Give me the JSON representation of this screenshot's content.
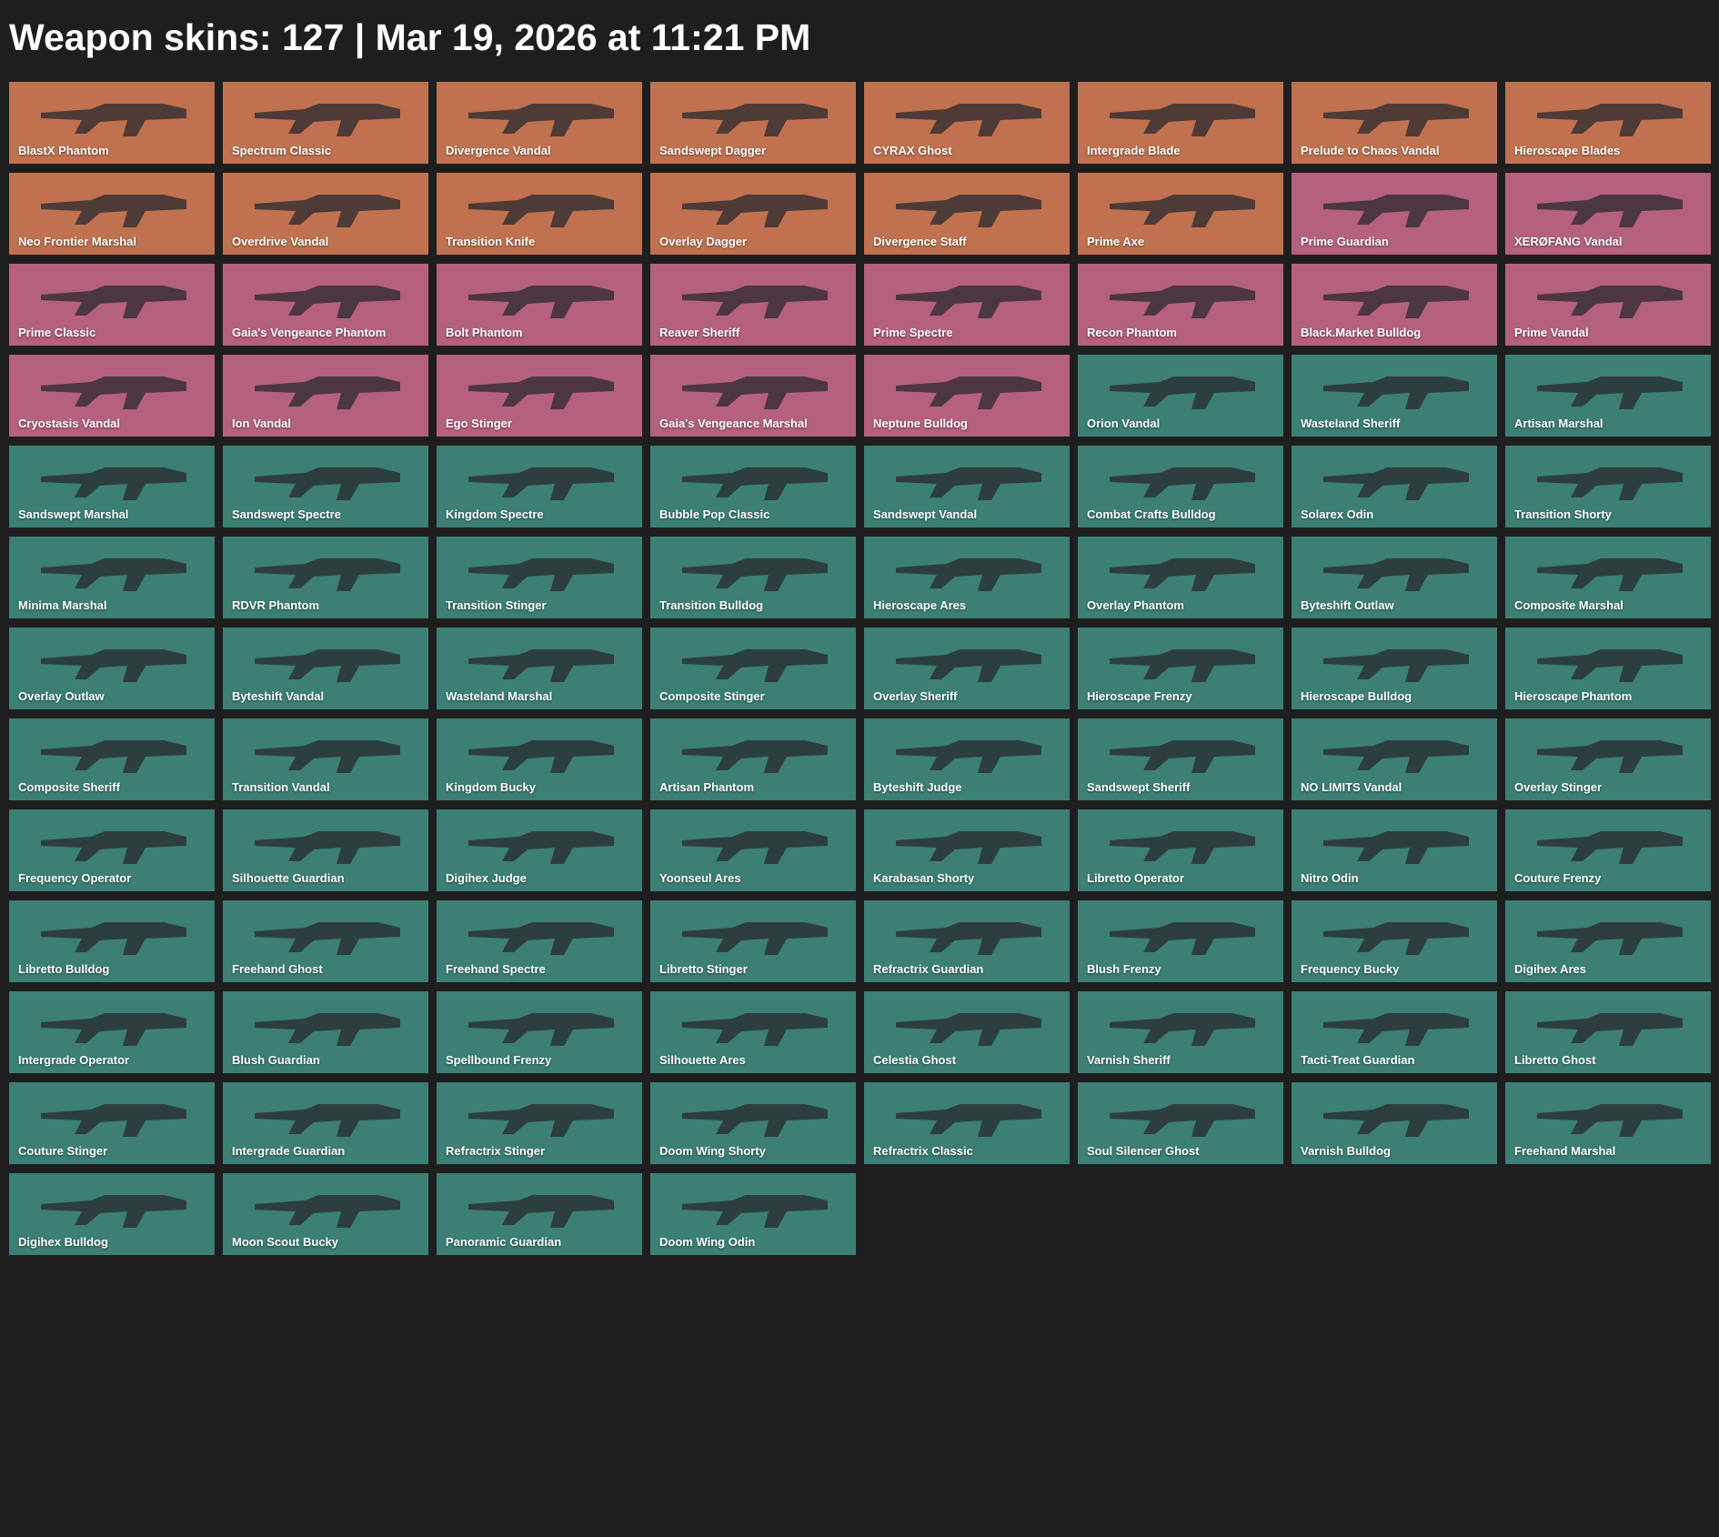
{
  "header": {
    "title": "Weapon skins: 127 | Mar 19, 2026 at 11:21 PM"
  },
  "tiles": [
    {
      "name": "BlastX Phantom",
      "color": "#c0714f"
    },
    {
      "name": "Spectrum Classic",
      "color": "#c0714f"
    },
    {
      "name": "Divergence Vandal",
      "color": "#c0714f"
    },
    {
      "name": "Sandswept Dagger",
      "color": "#c0714f"
    },
    {
      "name": "CYRAX Ghost",
      "color": "#c0714f"
    },
    {
      "name": "Intergrade Blade",
      "color": "#c0714f"
    },
    {
      "name": "Prelude to Chaos Vandal",
      "color": "#c0714f"
    },
    {
      "name": "Hieroscape Blades",
      "color": "#c0714f"
    },
    {
      "name": "Neo Frontier Marshal",
      "color": "#c0714f"
    },
    {
      "name": "Overdrive Vandal",
      "color": "#c0714f"
    },
    {
      "name": "Transition Knife",
      "color": "#c0714f"
    },
    {
      "name": "Overlay Dagger",
      "color": "#c0714f"
    },
    {
      "name": "Divergence Staff",
      "color": "#c0714f"
    },
    {
      "name": "Prime Axe",
      "color": "#c0714f"
    },
    {
      "name": "Prime Guardian",
      "color": "#b5607f"
    },
    {
      "name": "XERØFANG Vandal",
      "color": "#b5607f"
    },
    {
      "name": "Prime Classic",
      "color": "#b5607f"
    },
    {
      "name": "Gaia's Vengeance Phantom",
      "color": "#b5607f"
    },
    {
      "name": "Bolt Phantom",
      "color": "#b5607f"
    },
    {
      "name": "Reaver Sheriff",
      "color": "#b5607f"
    },
    {
      "name": "Prime Spectre",
      "color": "#b5607f"
    },
    {
      "name": "Recon Phantom",
      "color": "#b5607f"
    },
    {
      "name": "Black.Market Bulldog",
      "color": "#b5607f"
    },
    {
      "name": "Prime Vandal",
      "color": "#b5607f"
    },
    {
      "name": "Cryostasis Vandal",
      "color": "#b5607f"
    },
    {
      "name": "Ion Vandal",
      "color": "#b5607f"
    },
    {
      "name": "Ego Stinger",
      "color": "#b5607f"
    },
    {
      "name": "Gaia's Vengeance Marshal",
      "color": "#b5607f"
    },
    {
      "name": "Neptune Bulldog",
      "color": "#b5607f"
    },
    {
      "name": "Orion Vandal",
      "color": "#3c7f74"
    },
    {
      "name": "Wasteland Sheriff",
      "color": "#3c7f74"
    },
    {
      "name": "Artisan Marshal",
      "color": "#3c7f74"
    },
    {
      "name": "Sandswept Marshal",
      "color": "#3c7f74"
    },
    {
      "name": "Sandswept Spectre",
      "color": "#3c7f74"
    },
    {
      "name": "Kingdom Spectre",
      "color": "#3c7f74"
    },
    {
      "name": "Bubble Pop Classic",
      "color": "#3c7f74"
    },
    {
      "name": "Sandswept Vandal",
      "color": "#3c7f74"
    },
    {
      "name": "Combat Crafts Bulldog",
      "color": "#3c7f74"
    },
    {
      "name": "Solarex Odin",
      "color": "#3c7f74"
    },
    {
      "name": "Transition Shorty",
      "color": "#3c7f74"
    },
    {
      "name": "Minima Marshal",
      "color": "#3c7f74"
    },
    {
      "name": "RDVR Phantom",
      "color": "#3c7f74"
    },
    {
      "name": "Transition Stinger",
      "color": "#3c7f74"
    },
    {
      "name": "Transition Bulldog",
      "color": "#3c7f74"
    },
    {
      "name": "Hieroscape Ares",
      "color": "#3c7f74"
    },
    {
      "name": "Overlay Phantom",
      "color": "#3c7f74"
    },
    {
      "name": "Byteshift Outlaw",
      "color": "#3c7f74"
    },
    {
      "name": "Composite Marshal",
      "color": "#3c7f74"
    },
    {
      "name": "Overlay Outlaw",
      "color": "#3c7f74"
    },
    {
      "name": "Byteshift Vandal",
      "color": "#3c7f74"
    },
    {
      "name": "Wasteland Marshal",
      "color": "#3c7f74"
    },
    {
      "name": "Composite Stinger",
      "color": "#3c7f74"
    },
    {
      "name": "Overlay Sheriff",
      "color": "#3c7f74"
    },
    {
      "name": "Hieroscape Frenzy",
      "color": "#3c7f74"
    },
    {
      "name": "Hieroscape Bulldog",
      "color": "#3c7f74"
    },
    {
      "name": "Hieroscape Phantom",
      "color": "#3c7f74"
    },
    {
      "name": "Composite Sheriff",
      "color": "#3c7f74"
    },
    {
      "name": "Transition Vandal",
      "color": "#3c7f74"
    },
    {
      "name": "Kingdom Bucky",
      "color": "#3c7f74"
    },
    {
      "name": "Artisan Phantom",
      "color": "#3c7f74"
    },
    {
      "name": "Byteshift Judge",
      "color": "#3c7f74"
    },
    {
      "name": "Sandswept Sheriff",
      "color": "#3c7f74"
    },
    {
      "name": "NO LIMITS Vandal",
      "color": "#3c7f74"
    },
    {
      "name": "Overlay Stinger",
      "color": "#3c7f74"
    },
    {
      "name": "Frequency Operator",
      "color": "#3c7f74"
    },
    {
      "name": "Silhouette Guardian",
      "color": "#3c7f74"
    },
    {
      "name": "Digihex Judge",
      "color": "#3c7f74"
    },
    {
      "name": "Yoonseul Ares",
      "color": "#3c7f74"
    },
    {
      "name": "Karabasan Shorty",
      "color": "#3c7f74"
    },
    {
      "name": "Libretto Operator",
      "color": "#3c7f74"
    },
    {
      "name": "Nitro Odin",
      "color": "#3c7f74"
    },
    {
      "name": "Couture Frenzy",
      "color": "#3c7f74"
    },
    {
      "name": "Libretto Bulldog",
      "color": "#3c7f74"
    },
    {
      "name": "Freehand Ghost",
      "color": "#3c7f74"
    },
    {
      "name": "Freehand Spectre",
      "color": "#3c7f74"
    },
    {
      "name": "Libretto Stinger",
      "color": "#3c7f74"
    },
    {
      "name": "Refractrix Guardian",
      "color": "#3c7f74"
    },
    {
      "name": "Blush Frenzy",
      "color": "#3c7f74"
    },
    {
      "name": "Frequency Bucky",
      "color": "#3c7f74"
    },
    {
      "name": "Digihex Ares",
      "color": "#3c7f74"
    },
    {
      "name": "Intergrade Operator",
      "color": "#3c7f74"
    },
    {
      "name": "Blush Guardian",
      "color": "#3c7f74"
    },
    {
      "name": "Spellbound Frenzy",
      "color": "#3c7f74"
    },
    {
      "name": "Silhouette Ares",
      "color": "#3c7f74"
    },
    {
      "name": "Celestia Ghost",
      "color": "#3c7f74"
    },
    {
      "name": "Varnish Sheriff",
      "color": "#3c7f74"
    },
    {
      "name": "Tacti-Treat Guardian",
      "color": "#3c7f74"
    },
    {
      "name": "Libretto Ghost",
      "color": "#3c7f74"
    },
    {
      "name": "Couture Stinger",
      "color": "#3c7f74"
    },
    {
      "name": "Intergrade Guardian",
      "color": "#3c7f74"
    },
    {
      "name": "Refractrix Stinger",
      "color": "#3c7f74"
    },
    {
      "name": "Doom Wing Shorty",
      "color": "#3c7f74"
    },
    {
      "name": "Refractrix Classic",
      "color": "#3c7f74"
    },
    {
      "name": "Soul Silencer Ghost",
      "color": "#3c7f74"
    },
    {
      "name": "Varnish Bulldog",
      "color": "#3c7f74"
    },
    {
      "name": "Freehand Marshal",
      "color": "#3c7f74"
    },
    {
      "name": "Digihex Bulldog",
      "color": "#3c7f74"
    },
    {
      "name": "Moon Scout Bucky",
      "color": "#3c7f74"
    },
    {
      "name": "Panoramic Guardian",
      "color": "#3c7f74"
    },
    {
      "name": "Doom Wing Odin",
      "color": "#3c7f74"
    }
  ]
}
